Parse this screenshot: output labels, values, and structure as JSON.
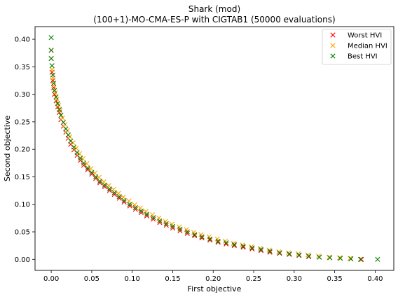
{
  "chart_data": {
    "type": "scatter",
    "title": "Shark (mod)",
    "subtitle": "(100+1)-MO-CMA-ES-P with CIGTAB1 (50000 evaluations)",
    "xlabel": "First objective",
    "ylabel": "Second objective",
    "xlim": [
      -0.02,
      0.423
    ],
    "ylim": [
      -0.02,
      0.423
    ],
    "xticks": [
      "0.00",
      "0.05",
      "0.10",
      "0.15",
      "0.20",
      "0.25",
      "0.30",
      "0.35",
      "0.40"
    ],
    "yticks": [
      "0.00",
      "0.05",
      "0.10",
      "0.15",
      "0.20",
      "0.25",
      "0.30",
      "0.35",
      "0.40"
    ],
    "marker": "x",
    "grid": false,
    "legend_position": "top-right",
    "series": [
      {
        "name": "Worst HVI",
        "color": "#ff0000",
        "x": [
          0.0,
          0.0,
          0.001,
          0.002,
          0.003,
          0.004,
          0.006,
          0.008,
          0.01,
          0.012,
          0.015,
          0.018,
          0.021,
          0.024,
          0.028,
          0.032,
          0.036,
          0.04,
          0.045,
          0.05,
          0.055,
          0.06,
          0.066,
          0.072,
          0.078,
          0.084,
          0.09,
          0.097,
          0.104,
          0.111,
          0.118,
          0.126,
          0.134,
          0.142,
          0.15,
          0.159,
          0.168,
          0.177,
          0.186,
          0.196,
          0.206,
          0.216,
          0.226,
          0.237,
          0.248,
          0.259,
          0.27,
          0.282,
          0.294,
          0.306,
          0.318,
          0.331,
          0.344,
          0.357,
          0.37,
          0.383
        ],
        "y": [
          0.38,
          0.365,
          0.34,
          0.325,
          0.312,
          0.3,
          0.288,
          0.277,
          0.267,
          0.254,
          0.242,
          0.231,
          0.22,
          0.209,
          0.199,
          0.189,
          0.18,
          0.171,
          0.163,
          0.155,
          0.147,
          0.139,
          0.132,
          0.125,
          0.118,
          0.111,
          0.104,
          0.097,
          0.091,
          0.085,
          0.079,
          0.073,
          0.067,
          0.062,
          0.057,
          0.052,
          0.047,
          0.043,
          0.039,
          0.035,
          0.031,
          0.028,
          0.025,
          0.022,
          0.019,
          0.016,
          0.013,
          0.011,
          0.009,
          0.007,
          0.005,
          0.004,
          0.003,
          0.002,
          0.001,
          0.0
        ]
      },
      {
        "name": "Median HVI",
        "color": "#ffa500",
        "x": [
          0.0,
          0.001,
          0.002,
          0.003,
          0.005,
          0.007,
          0.009,
          0.011,
          0.014,
          0.017,
          0.02,
          0.023,
          0.027,
          0.031,
          0.035,
          0.039,
          0.044,
          0.049,
          0.054,
          0.059,
          0.065,
          0.071,
          0.077,
          0.083,
          0.089,
          0.096,
          0.103,
          0.11,
          0.117,
          0.125,
          0.133,
          0.141,
          0.149,
          0.158,
          0.167,
          0.176,
          0.185,
          0.195,
          0.205,
          0.215,
          0.225,
          0.236,
          0.247,
          0.258,
          0.269,
          0.281,
          0.293,
          0.305,
          0.317,
          0.33,
          0.343,
          0.356,
          0.369,
          0.382
        ],
        "y": [
          0.365,
          0.345,
          0.33,
          0.316,
          0.303,
          0.291,
          0.28,
          0.27,
          0.257,
          0.245,
          0.234,
          0.223,
          0.212,
          0.202,
          0.192,
          0.183,
          0.174,
          0.165,
          0.157,
          0.149,
          0.141,
          0.134,
          0.127,
          0.12,
          0.113,
          0.106,
          0.099,
          0.093,
          0.087,
          0.081,
          0.075,
          0.069,
          0.064,
          0.059,
          0.054,
          0.049,
          0.045,
          0.041,
          0.037,
          0.033,
          0.029,
          0.026,
          0.023,
          0.02,
          0.017,
          0.014,
          0.012,
          0.01,
          0.008,
          0.006,
          0.004,
          0.003,
          0.002,
          0.0
        ]
      },
      {
        "name": "Best HVI",
        "color": "#008000",
        "x": [
          0.0,
          0.0,
          0.0,
          0.001,
          0.002,
          0.003,
          0.004,
          0.006,
          0.008,
          0.01,
          0.012,
          0.015,
          0.018,
          0.021,
          0.024,
          0.028,
          0.032,
          0.036,
          0.04,
          0.045,
          0.05,
          0.055,
          0.06,
          0.066,
          0.072,
          0.078,
          0.084,
          0.09,
          0.097,
          0.104,
          0.111,
          0.118,
          0.126,
          0.134,
          0.142,
          0.15,
          0.159,
          0.168,
          0.177,
          0.186,
          0.196,
          0.206,
          0.216,
          0.226,
          0.237,
          0.248,
          0.259,
          0.27,
          0.282,
          0.294,
          0.306,
          0.318,
          0.331,
          0.344,
          0.357,
          0.37,
          0.382,
          0.403
        ],
        "y": [
          0.403,
          0.38,
          0.365,
          0.352,
          0.335,
          0.32,
          0.307,
          0.295,
          0.283,
          0.272,
          0.262,
          0.249,
          0.237,
          0.226,
          0.215,
          0.204,
          0.194,
          0.184,
          0.175,
          0.166,
          0.158,
          0.15,
          0.142,
          0.135,
          0.128,
          0.121,
          0.114,
          0.107,
          0.1,
          0.094,
          0.088,
          0.082,
          0.076,
          0.07,
          0.065,
          0.06,
          0.055,
          0.05,
          0.045,
          0.041,
          0.037,
          0.033,
          0.03,
          0.027,
          0.024,
          0.021,
          0.018,
          0.015,
          0.012,
          0.01,
          0.008,
          0.006,
          0.004,
          0.003,
          0.002,
          0.001,
          0.0,
          0.0
        ]
      }
    ]
  }
}
